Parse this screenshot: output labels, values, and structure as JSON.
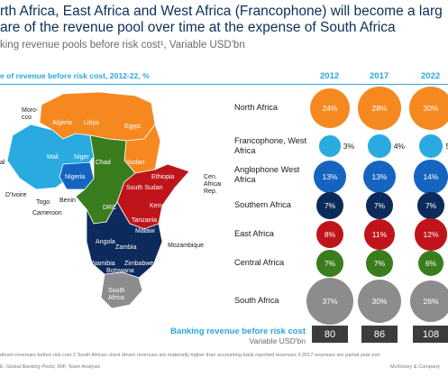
{
  "title_line1": "rth Africa, East Africa and West Africa (Francophone) will become a larg",
  "title_line2": "are of the revenue pool over time at the expense of South Africa",
  "subtitle": "king revenue pools before risk cost¹, Variable USD'bn",
  "section_heading": "e of revenue before risk cost, 2012-22, %",
  "footnote_line": "driven revenues before risk cost   2 South African client driven revenues are materially higher than accounting bank reported revenues   3 2017 revenues are partial year esti",
  "source_line": "E: Global Banking Pools; IMF, Team Analysis",
  "brand": "McKinsey & Company",
  "colors": {
    "north": "#f5891f",
    "francophone": "#29abe2",
    "anglophone": "#1565c0",
    "southern": "#0d2a5c",
    "east": "#c0141b",
    "central": "#3a7d1e",
    "south": "#8c8c8c",
    "accent": "#2aa6dd"
  },
  "map_labels": [
    {
      "text": "Moro-",
      "color": "dark"
    },
    {
      "text": "cco",
      "color": "dark"
    },
    {
      "text": "Algeria",
      "color": "light"
    },
    {
      "text": "Libya",
      "color": "light"
    },
    {
      "text": "Egypt",
      "color": "light"
    },
    {
      "text": "Mali",
      "color": "light"
    },
    {
      "text": "Niger",
      "color": "light"
    },
    {
      "text": "Chad",
      "color": "light"
    },
    {
      "text": "Sudan",
      "color": "light"
    },
    {
      "text": "al",
      "color": "dark"
    },
    {
      "text": "D'Ivoire",
      "color": "dark"
    },
    {
      "text": "Nigeria",
      "color": "light"
    },
    {
      "text": "Ethiopia",
      "color": "light"
    },
    {
      "text": "South Sudan",
      "color": "light"
    },
    {
      "text": "Cen.",
      "color": "dark"
    },
    {
      "text": "African",
      "color": "dark"
    },
    {
      "text": "Rep.",
      "color": "dark"
    },
    {
      "text": "Togo",
      "color": "dark"
    },
    {
      "text": "Benin",
      "color": "dark"
    },
    {
      "text": "Cameroon",
      "color": "dark"
    },
    {
      "text": "DRC",
      "color": "light"
    },
    {
      "text": "Kenya",
      "color": "light"
    },
    {
      "text": "Tanzania",
      "color": "light"
    },
    {
      "text": "Malawi",
      "color": "light"
    },
    {
      "text": "Angola",
      "color": "light"
    },
    {
      "text": "Zambia",
      "color": "light"
    },
    {
      "text": "Mozambique",
      "color": "dark"
    },
    {
      "text": "Namibia",
      "color": "light"
    },
    {
      "text": "Zimbabwe",
      "color": "light"
    },
    {
      "text": "Botswana",
      "color": "light"
    },
    {
      "text": "South",
      "color": "light"
    },
    {
      "text": "Africa",
      "color": "light"
    }
  ],
  "chart_data": {
    "type": "bubble-table",
    "title": "rth Africa, East Africa and West Africa (Francophone) will become a larg are of the revenue pool over time at the expense of South Africa",
    "subtitle": "king revenue pools before risk cost¹, Variable USD'bn",
    "ylabel": "e of revenue before risk cost, 2012-22, %",
    "categories": [
      "2012",
      "2017",
      "2022"
    ],
    "series": [
      {
        "name": "North Africa",
        "values": [
          24,
          28,
          30
        ],
        "labels": [
          "24%",
          "28%",
          "30%"
        ],
        "color": "north",
        "label_outside": false
      },
      {
        "name": "Francophone, West Africa",
        "values": [
          3,
          4,
          5
        ],
        "labels": [
          "3%",
          "4%",
          "5"
        ],
        "color": "francophone",
        "label_outside": true
      },
      {
        "name": "Anglophone West Africa",
        "values": [
          13,
          13,
          14
        ],
        "labels": [
          "13%",
          "13%",
          "14%"
        ],
        "color": "anglophone",
        "label_outside": false
      },
      {
        "name": "Southern Africa",
        "values": [
          7,
          7,
          7
        ],
        "labels": [
          "7%",
          "7%",
          "7%"
        ],
        "color": "southern",
        "label_outside": false
      },
      {
        "name": "East Africa",
        "values": [
          8,
          11,
          12
        ],
        "labels": [
          "8%",
          "11%",
          "12%"
        ],
        "color": "east",
        "label_outside": false
      },
      {
        "name": "Central Africa",
        "values": [
          7,
          7,
          6
        ],
        "labels": [
          "7%",
          "7%",
          "6%"
        ],
        "color": "central",
        "label_outside": false
      },
      {
        "name": "South Africa",
        "values": [
          37,
          30,
          26
        ],
        "labels": [
          "37%",
          "30%",
          "26%"
        ],
        "color": "south",
        "label_outside": false
      }
    ],
    "totals": {
      "label": "Banking revenue before risk cost",
      "unit": "Variable USD'bn",
      "values": [
        80,
        86,
        108
      ]
    }
  }
}
